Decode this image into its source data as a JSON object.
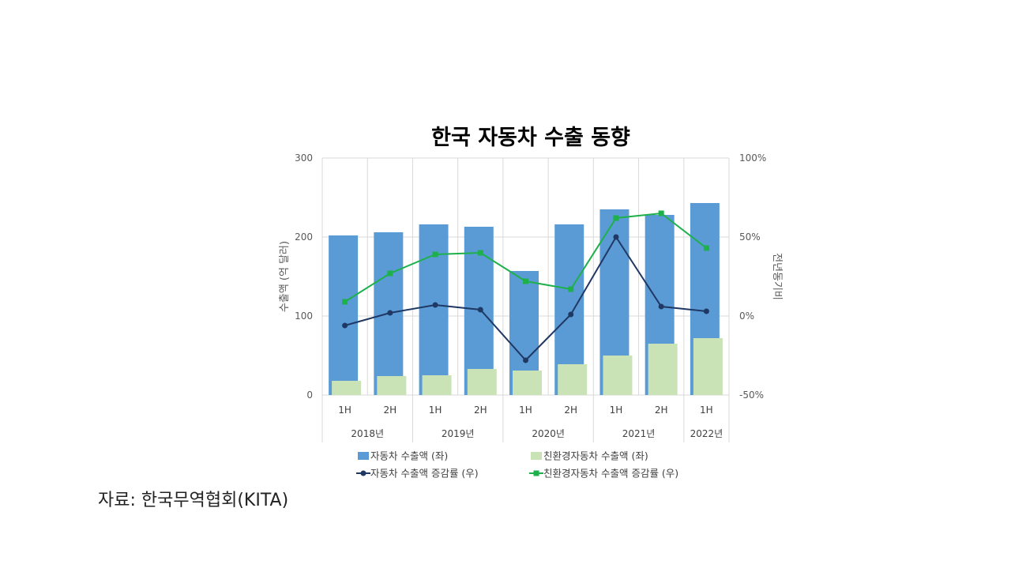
{
  "chart_data": {
    "type": "bar",
    "title": "한국 자동차 수출 동향",
    "ylabel_left": "수출액 (억 달러)",
    "ylabel_right": "전년동기비",
    "ylim_left": [
      0,
      300
    ],
    "yticks_left": [
      "0",
      "100",
      "200",
      "300"
    ],
    "ylim_right": [
      -50,
      100
    ],
    "yticks_right": [
      "-50%",
      "0%",
      "50%",
      "100%"
    ],
    "categories": [
      "1H",
      "2H",
      "1H",
      "2H",
      "1H",
      "2H",
      "1H",
      "2H",
      "1H"
    ],
    "groups": [
      {
        "label": "2018년",
        "count": 2
      },
      {
        "label": "2019년",
        "count": 2
      },
      {
        "label": "2020년",
        "count": 2
      },
      {
        "label": "2021년",
        "count": 2
      },
      {
        "label": "2022년",
        "count": 1
      }
    ],
    "series": [
      {
        "name": "자동차 수출액 (좌)",
        "kind": "bar",
        "axis": "left",
        "color": "#5B9BD5",
        "values": [
          202,
          206,
          216,
          213,
          157,
          216,
          235,
          228,
          243
        ]
      },
      {
        "name": "친환경자동차 수출액 (좌)",
        "kind": "bar",
        "axis": "left",
        "color": "#C9E3B6",
        "values": [
          18,
          24,
          25,
          33,
          31,
          39,
          50,
          65,
          72
        ]
      },
      {
        "name": "자동차 수출액 증감률 (우)",
        "kind": "line",
        "axis": "right",
        "color": "#1F3864",
        "marker": "circle",
        "values": [
          -6,
          2,
          7,
          4,
          -28,
          1,
          50,
          6,
          3
        ]
      },
      {
        "name": "친환경자동차 수출액 증감률 (우)",
        "kind": "line",
        "axis": "right",
        "color": "#1DB04B",
        "marker": "square",
        "values": [
          9,
          27,
          39,
          40,
          22,
          17,
          62,
          65,
          43
        ]
      }
    ],
    "grid": true,
    "legend_position": "bottom"
  },
  "source": "자료:  한국무역협회(KITA)"
}
